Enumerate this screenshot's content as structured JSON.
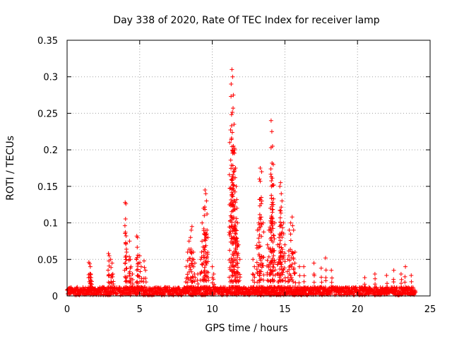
{
  "chart_data": {
    "type": "scatter",
    "title": "Day 338 of 2020, Rate Of TEC Index for receiver lamp",
    "xlabel": "GPS time / hours",
    "ylabel": "ROTI / TECUs",
    "xlim": [
      0,
      25
    ],
    "ylim": [
      0,
      0.35
    ],
    "xticks": [
      0,
      5,
      10,
      15,
      20,
      25
    ],
    "yticks": [
      0,
      0.05,
      0.1,
      0.15,
      0.2,
      0.25,
      0.3,
      0.35
    ],
    "xtick_labels": [
      "0",
      "5",
      "10",
      "15",
      "20",
      "25"
    ],
    "ytick_labels": [
      "0",
      "0.05",
      "0.1",
      "0.15",
      "0.2",
      "0.25",
      "0.3",
      "0.35"
    ],
    "grid": true,
    "marker": "plus",
    "color": "#ff0000",
    "baseline_band": {
      "x_start": 0,
      "x_end": 24,
      "y_min": 0.001,
      "y_max": 0.012
    },
    "series": [
      {
        "x": [
          1.5,
          1.55,
          1.6,
          1.62,
          1.65,
          1.7,
          2.85,
          2.9,
          3.0,
          3.1,
          3.15,
          4.0,
          4.05,
          4.1,
          4.3,
          4.35,
          4.4,
          4.5,
          4.8,
          4.85,
          4.9,
          5.0,
          5.1,
          5.3,
          5.4,
          8.2,
          8.3,
          8.4,
          8.5,
          8.55,
          8.6,
          8.7,
          8.8,
          9.0,
          9.2,
          9.3,
          9.4,
          9.45,
          9.5,
          9.55,
          9.6,
          9.7,
          10.0,
          10.1,
          11.2,
          11.3,
          11.35,
          11.4,
          11.45,
          11.5,
          11.55,
          11.6,
          11.65,
          11.7,
          11.75,
          11.8,
          11.9,
          12.8,
          12.9,
          13.1,
          13.2,
          13.25,
          13.3,
          13.4,
          13.5,
          13.8,
          13.9,
          14.0,
          14.05,
          14.1,
          14.15,
          14.2,
          14.3,
          14.5,
          14.6,
          14.65,
          14.7,
          14.75,
          14.8,
          14.9,
          15.0,
          15.2,
          15.3,
          15.4,
          15.5,
          15.6,
          15.7,
          16.0,
          16.3,
          17.0,
          17.5,
          17.8,
          18.2,
          20.5,
          21.2,
          22.0,
          22.5,
          23.0,
          23.3,
          23.7
        ],
        "y": [
          0.046,
          0.044,
          0.04,
          0.03,
          0.025,
          0.02,
          0.058,
          0.055,
          0.05,
          0.045,
          0.03,
          0.128,
          0.126,
          0.06,
          0.075,
          0.05,
          0.04,
          0.03,
          0.082,
          0.08,
          0.045,
          0.055,
          0.04,
          0.048,
          0.035,
          0.04,
          0.06,
          0.075,
          0.08,
          0.09,
          0.095,
          0.06,
          0.045,
          0.03,
          0.05,
          0.1,
          0.12,
          0.11,
          0.145,
          0.14,
          0.13,
          0.08,
          0.04,
          0.03,
          0.21,
          0.29,
          0.31,
          0.3,
          0.275,
          0.235,
          0.2,
          0.175,
          0.15,
          0.12,
          0.1,
          0.07,
          0.05,
          0.05,
          0.04,
          0.09,
          0.1,
          0.16,
          0.175,
          0.17,
          0.1,
          0.07,
          0.09,
          0.12,
          0.24,
          0.225,
          0.205,
          0.18,
          0.1,
          0.07,
          0.08,
          0.15,
          0.155,
          0.14,
          0.13,
          0.1,
          0.07,
          0.05,
          0.09,
          0.1,
          0.108,
          0.09,
          0.06,
          0.04,
          0.04,
          0.045,
          0.038,
          0.052,
          0.035,
          0.025,
          0.03,
          0.028,
          0.035,
          0.03,
          0.04,
          0.028
        ]
      }
    ]
  }
}
